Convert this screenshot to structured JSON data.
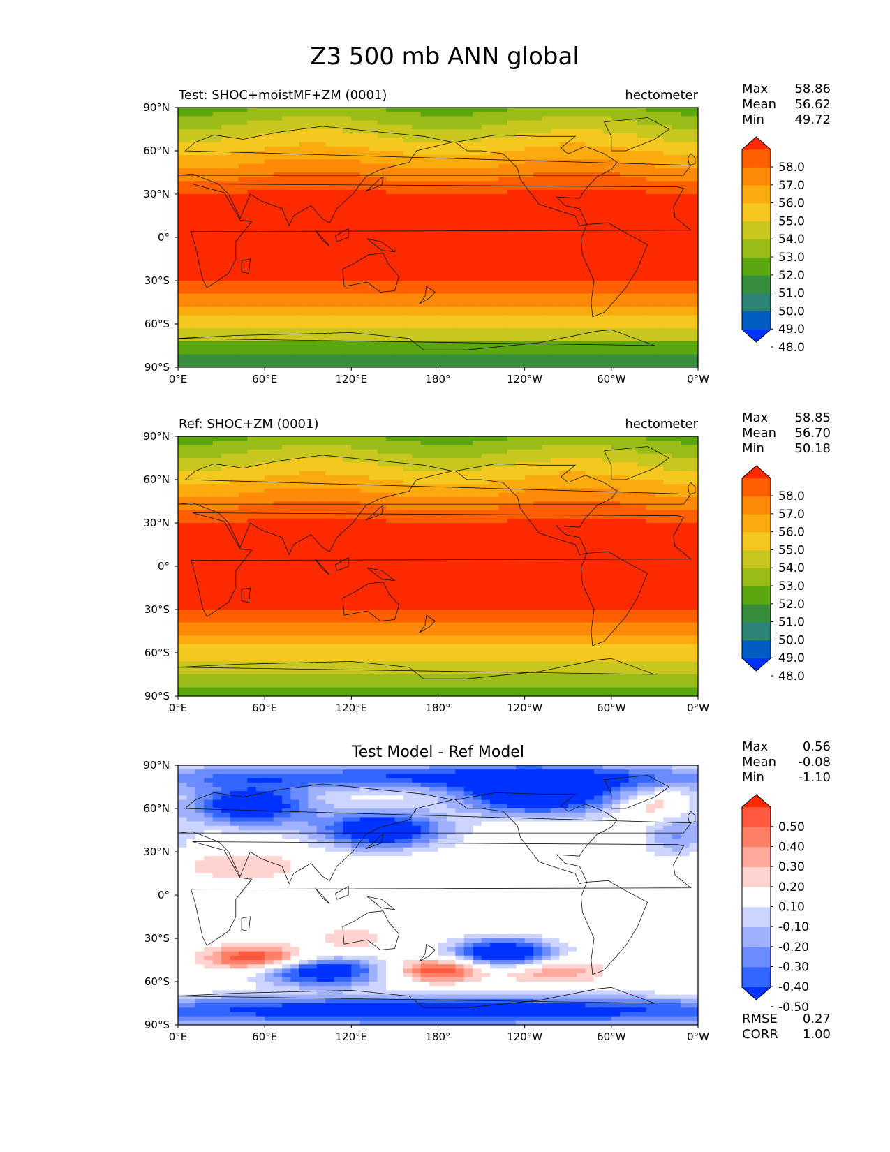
{
  "title": "Z3 500 mb ANN global",
  "lat_ticks": [
    "90°N",
    "60°N",
    "30°N",
    "0°",
    "30°S",
    "60°S",
    "90°S"
  ],
  "lon_ticks": [
    "0°E",
    "60°E",
    "120°E",
    "180°",
    "120°W",
    "60°W",
    "0°W"
  ],
  "colors": {
    "z3": [
      "#0032ff",
      "#005ec2",
      "#2e8577",
      "#388e3c",
      "#5ba70f",
      "#99bd16",
      "#c8c71f",
      "#f5c81f",
      "#fcab0f",
      "#ff8a0a",
      "#ff5f00",
      "#ff2a00"
    ],
    "diff": [
      "#0033ff",
      "#3366ff",
      "#6b8cff",
      "#9eb0ff",
      "#ccd5ff",
      "#ffffff",
      "#ffd3cf",
      "#ffa89c",
      "#ff7f66",
      "#ff5a40",
      "#ff2a00"
    ]
  },
  "panels": [
    {
      "id": "test",
      "left_title": "Test: SHOC+moistMF+ZM (0001)",
      "center_title": "",
      "right_title": "hectometer",
      "stats": [
        {
          "label": "Max",
          "value": "58.86"
        },
        {
          "label": "Mean",
          "value": "56.62"
        },
        {
          "label": "Min",
          "value": "49.72"
        }
      ],
      "colorbar": {
        "palette": "z3",
        "labels": [
          "58.0",
          "57.0",
          "56.0",
          "55.0",
          "54.0",
          "53.0",
          "52.0",
          "51.0",
          "50.0",
          "49.0",
          "48.0"
        ]
      },
      "extra_stats": []
    },
    {
      "id": "ref",
      "left_title": "Ref: SHOC+ZM (0001)",
      "center_title": "",
      "right_title": "hectometer",
      "stats": [
        {
          "label": "Max",
          "value": "58.85"
        },
        {
          "label": "Mean",
          "value": "56.70"
        },
        {
          "label": "Min",
          "value": "50.18"
        }
      ],
      "colorbar": {
        "palette": "z3",
        "labels": [
          "58.0",
          "57.0",
          "56.0",
          "55.0",
          "54.0",
          "53.0",
          "52.0",
          "51.0",
          "50.0",
          "49.0",
          "48.0"
        ]
      },
      "extra_stats": []
    },
    {
      "id": "diff",
      "left_title": "",
      "center_title": "Test Model - Ref Model",
      "right_title": "",
      "stats": [
        {
          "label": "Max",
          "value": "0.56"
        },
        {
          "label": "Mean",
          "value": "-0.08"
        },
        {
          "label": "Min",
          "value": "-1.10"
        }
      ],
      "colorbar": {
        "palette": "diff",
        "labels": [
          "0.50",
          "0.40",
          "0.30",
          "0.20",
          "0.10",
          "-0.10",
          "-0.20",
          "-0.30",
          "-0.40",
          "-0.50"
        ]
      },
      "extra_stats": [
        {
          "label": "RMSE",
          "value": "0.27"
        },
        {
          "label": "CORR",
          "value": "1.00"
        }
      ]
    }
  ]
}
